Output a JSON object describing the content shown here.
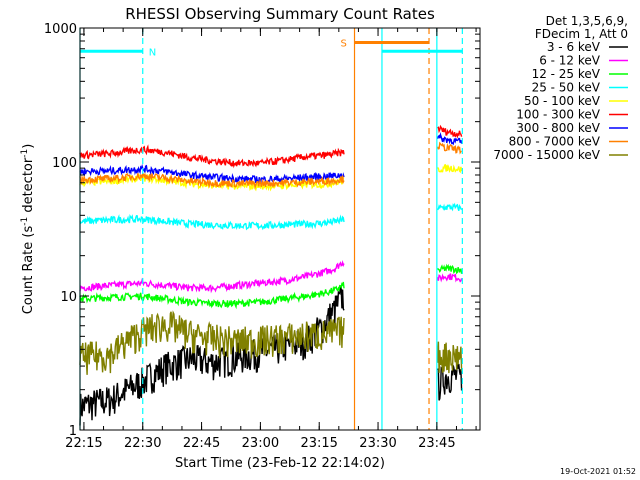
{
  "chart_data": {
    "type": "line",
    "title": "RHESSI Observing Summary Count Rates",
    "xlabel": "Start Time (23-Feb-12 22:14:02)",
    "ylabel_main": "Count Rate (s",
    "ylabel_exp1": "-1",
    "ylabel_mid": " detector",
    "ylabel_exp2": "-1",
    "ylabel_end": ")",
    "y_scale": "log",
    "ylim": [
      1,
      1000
    ],
    "xlim_minutes": [
      0,
      102
    ],
    "x_ticks": [
      {
        "label": "22:15",
        "minute": 1
      },
      {
        "label": "22:30",
        "minute": 16
      },
      {
        "label": "22:45",
        "minute": 31
      },
      {
        "label": "23:00",
        "minute": 46
      },
      {
        "label": "23:15",
        "minute": 61
      },
      {
        "label": "23:30",
        "minute": 76
      },
      {
        "label": "23:45",
        "minute": 91
      }
    ],
    "y_ticks": [
      {
        "label": "1",
        "value": 1
      },
      {
        "label": "10",
        "value": 10
      },
      {
        "label": "100",
        "value": 100
      },
      {
        "label": "1000",
        "value": 1000
      }
    ],
    "legend_header": [
      "Det 1,3,5,6,9,",
      "FDecim 1, Att 0"
    ],
    "legend_placement": "right",
    "series": [
      {
        "name": "3 - 6 keV",
        "color": "#000000",
        "x": [
          0,
          8,
          16,
          22,
          28,
          34,
          40,
          46,
          52,
          58,
          62,
          65,
          67,
          91.5,
          93,
          95,
          97.5
        ],
        "y": [
          1.5,
          1.7,
          2.3,
          3,
          3.4,
          3.2,
          3.5,
          3.8,
          4.2,
          4.7,
          6,
          8,
          10,
          2.2,
          2.5,
          2.6,
          2.4
        ]
      },
      {
        "name": "6 - 12 keV",
        "color": "#ff00ff",
        "x": [
          0,
          8,
          16,
          22,
          28,
          34,
          40,
          46,
          52,
          58,
          62,
          65,
          67,
          91.5,
          93,
          95,
          97.5
        ],
        "y": [
          11.5,
          12,
          12.5,
          12,
          11.5,
          11.5,
          12,
          12.5,
          13,
          14,
          15,
          16,
          18,
          13.5,
          14,
          14,
          13.5
        ]
      },
      {
        "name": "12 - 25 keV",
        "color": "#00ff00",
        "x": [
          0,
          8,
          16,
          22,
          28,
          34,
          40,
          46,
          52,
          58,
          62,
          65,
          67,
          91.5,
          93,
          95,
          97.5
        ],
        "y": [
          9.5,
          9.8,
          10,
          9.5,
          9,
          8.8,
          8.8,
          9,
          9.5,
          10,
          10.5,
          11,
          12,
          15.5,
          16,
          16,
          15.5
        ]
      },
      {
        "name": "25 - 50 keV",
        "color": "#00ffff",
        "x": [
          0,
          8,
          16,
          22,
          28,
          34,
          40,
          46,
          52,
          58,
          62,
          65,
          67,
          91.5,
          93,
          95,
          97.5
        ],
        "y": [
          36,
          37,
          37.5,
          36,
          34.5,
          34,
          33.5,
          33.5,
          34,
          34.5,
          35,
          36,
          37,
          45,
          46,
          46,
          45
        ]
      },
      {
        "name": "50 - 100 keV",
        "color": "#ffff00",
        "x": [
          0,
          8,
          16,
          22,
          28,
          34,
          40,
          46,
          52,
          58,
          62,
          65,
          67,
          91.5,
          93,
          95,
          97.5
        ],
        "y": [
          70,
          72,
          76,
          73,
          69,
          67,
          66,
          66,
          67,
          68,
          68,
          70,
          72,
          88,
          90,
          90,
          88
        ]
      },
      {
        "name": "100 - 300 keV",
        "color": "#ff0000",
        "x": [
          0,
          8,
          16,
          22,
          28,
          34,
          40,
          46,
          52,
          58,
          62,
          65,
          67,
          91.5,
          93,
          95,
          97.5
        ],
        "y": [
          112,
          116,
          124,
          118,
          108,
          102,
          98,
          98,
          103,
          110,
          112,
          115,
          118,
          178,
          170,
          165,
          160
        ]
      },
      {
        "name": "300 - 800 keV",
        "color": "#0000ff",
        "x": [
          0,
          8,
          16,
          22,
          28,
          34,
          40,
          46,
          52,
          58,
          62,
          65,
          67,
          91.5,
          93,
          95,
          97.5
        ],
        "y": [
          85,
          86,
          89,
          85,
          80,
          77,
          75,
          74,
          75,
          77,
          78,
          79,
          80,
          152,
          148,
          145,
          140
        ]
      },
      {
        "name": "800 - 7000 keV",
        "color": "#ff8000",
        "x": [
          0,
          8,
          16,
          22,
          28,
          34,
          40,
          46,
          52,
          58,
          62,
          65,
          67,
          91.5,
          93,
          95,
          97.5
        ],
        "y": [
          74,
          75,
          79,
          76,
          72,
          70,
          69,
          69,
          70,
          71,
          72,
          73,
          75,
          132,
          128,
          126,
          122
        ]
      },
      {
        "name": "7000 - 15000 keV",
        "color": "#808000",
        "x": [
          0,
          8,
          16,
          22,
          28,
          34,
          40,
          46,
          52,
          58,
          62,
          65,
          67,
          91.5,
          93,
          95,
          97.5
        ],
        "y": [
          3.5,
          3.7,
          5.5,
          6.2,
          5.2,
          4.8,
          4.6,
          4.7,
          4.9,
          5.1,
          5.2,
          5.4,
          5.6,
          3.6,
          3.6,
          3.6,
          3.6
        ]
      }
    ],
    "annotations": [
      {
        "label": "N",
        "color": "#00ffff",
        "x_start": 0,
        "x_end": 16,
        "level": 670
      },
      {
        "label": "S",
        "color": "#ff8000",
        "x_start": 70,
        "x_end": 89,
        "level": 780
      },
      {
        "label": "",
        "color": "#00ffff",
        "x_start": 77,
        "x_end": 97.5,
        "level": 670
      }
    ],
    "event_lines": [
      {
        "minute": 0,
        "color": "#00ffff",
        "style": "solid"
      },
      {
        "minute": 16,
        "color": "#00ffff",
        "style": "dashed"
      },
      {
        "minute": 70,
        "color": "#ff8000",
        "style": "solid"
      },
      {
        "minute": 77,
        "color": "#00ffff",
        "style": "solid"
      },
      {
        "minute": 89,
        "color": "#ff8000",
        "style": "dashed"
      },
      {
        "minute": 91,
        "color": "#00ffff",
        "style": "solid"
      },
      {
        "minute": 97.5,
        "color": "#00ffff",
        "style": "dashed"
      }
    ],
    "footer_date": "19-Oct-2021 01:52"
  }
}
